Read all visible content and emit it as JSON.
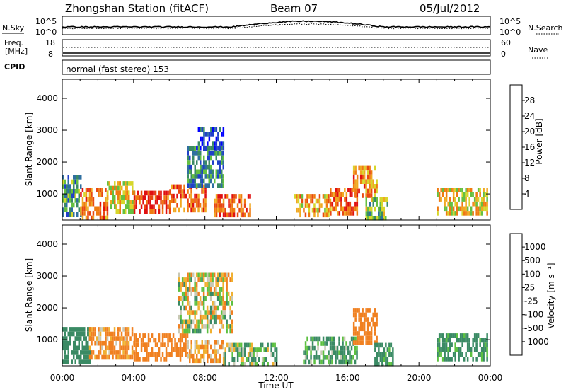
{
  "header": {
    "station": "Zhongshan Station (fitACF)",
    "beam": "Beam 07",
    "date": "05/Jul/2012"
  },
  "strip_panels": {
    "nsky_label": "N.Sky",
    "nsky_ticks": [
      "10^5",
      "10^0"
    ],
    "nsearch_label": "N.Search",
    "freq_label_line1": "Freq.",
    "freq_label_line2": "[MHz]",
    "freq_ticks": [
      "18",
      "8"
    ],
    "nave_ticks": [
      "60",
      "0"
    ],
    "nave_label": "Nave",
    "cpid_label": "CPID",
    "cpid_text": "normal (fast stereo) 153"
  },
  "axes": {
    "x_ticks": [
      "00:00",
      "04:00",
      "08:00",
      "12:00",
      "16:00",
      "20:00",
      "00:00"
    ],
    "x_label": "Time UT",
    "y_label": "Slant Range [km]",
    "y_ticks": [
      "1000",
      "2000",
      "3000",
      "4000"
    ]
  },
  "colorbars": {
    "power": {
      "label": "Power [dB]",
      "ticks": [
        "4",
        "8",
        "12",
        "16",
        "20",
        "24",
        "28"
      ],
      "colors": [
        "#0000ff",
        "#2040c8",
        "#2f6fa0",
        "#3a8a64",
        "#65c040",
        "#d6d62a",
        "#f0a820",
        "#ef7a10",
        "#e84810",
        "#e01010"
      ]
    },
    "velocity": {
      "label": "Velocity [m s⁻¹]",
      "ticks": [
        "1000",
        "500",
        "100",
        "25",
        "-25",
        "-100",
        "-500",
        "-1000"
      ],
      "colors": [
        "#1e3cc8",
        "#2f6fa0",
        "#3a8a64",
        "#5cc040",
        "#c8c8b4",
        "#f0b030",
        "#f08020",
        "#e84810",
        "#e01010"
      ]
    }
  },
  "chart_data": [
    {
      "type": "heatmap",
      "name": "Power",
      "title": "",
      "xlabel": "Time UT",
      "ylabel": "Slant Range [km]",
      "xlim": [
        0,
        24
      ],
      "ylim": [
        180,
        4600
      ],
      "colorbar_label": "Power [dB]",
      "colorbar_range": [
        0,
        30
      ],
      "regions": [
        {
          "t": [
            0.0,
            1.0
          ],
          "r": [
            300,
            1600
          ],
          "level": 10
        },
        {
          "t": [
            1.0,
            2.5
          ],
          "r": [
            300,
            1200
          ],
          "level": 22
        },
        {
          "t": [
            2.5,
            4.0
          ],
          "r": [
            400,
            1400
          ],
          "level": 18
        },
        {
          "t": [
            4.0,
            6.0
          ],
          "r": [
            400,
            1100
          ],
          "level": 26
        },
        {
          "t": [
            6.0,
            8.0
          ],
          "r": [
            500,
            1300
          ],
          "level": 24
        },
        {
          "t": [
            7.0,
            9.0
          ],
          "r": [
            1300,
            2500
          ],
          "level": 9
        },
        {
          "t": [
            7.5,
            9.0
          ],
          "r": [
            2500,
            3100
          ],
          "level": 6
        },
        {
          "t": [
            8.5,
            10.5
          ],
          "r": [
            300,
            1000
          ],
          "level": 24
        },
        {
          "t": [
            13.0,
            15.0
          ],
          "r": [
            400,
            1000
          ],
          "level": 20
        },
        {
          "t": [
            15.0,
            16.5
          ],
          "r": [
            400,
            1200
          ],
          "level": 24
        },
        {
          "t": [
            16.3,
            17.6
          ],
          "r": [
            1000,
            1900
          ],
          "level": 22
        },
        {
          "t": [
            17.0,
            18.2
          ],
          "r": [
            300,
            900
          ],
          "level": 14
        },
        {
          "t": [
            21.0,
            23.8
          ],
          "r": [
            400,
            1200
          ],
          "level": 18
        }
      ]
    },
    {
      "type": "heatmap",
      "name": "Velocity",
      "title": "",
      "xlabel": "Time UT",
      "ylabel": "Slant Range [km]",
      "xlim": [
        0,
        24
      ],
      "ylim": [
        180,
        4600
      ],
      "colorbar_label": "Velocity [m s⁻¹]",
      "colorbar_range": [
        -1000,
        1000
      ],
      "regions": [
        {
          "t": [
            0.0,
            1.5
          ],
          "r": [
            300,
            1400
          ],
          "level": 300
        },
        {
          "t": [
            1.5,
            4.0
          ],
          "r": [
            400,
            1400
          ],
          "level": -150
        },
        {
          "t": [
            4.0,
            7.0
          ],
          "r": [
            400,
            1200
          ],
          "level": -250
        },
        {
          "t": [
            6.5,
            9.5
          ],
          "r": [
            1200,
            3100
          ],
          "level": 0
        },
        {
          "t": [
            7.0,
            9.0
          ],
          "r": [
            300,
            1000
          ],
          "level": -120
        },
        {
          "t": [
            9.0,
            12.0
          ],
          "r": [
            300,
            900
          ],
          "level": 80
        },
        {
          "t": [
            13.5,
            16.5
          ],
          "r": [
            300,
            1100
          ],
          "level": 150
        },
        {
          "t": [
            16.3,
            17.6
          ],
          "r": [
            900,
            2000
          ],
          "level": -300
        },
        {
          "t": [
            17.5,
            18.5
          ],
          "r": [
            300,
            900
          ],
          "level": 200
        },
        {
          "t": [
            21.0,
            23.8
          ],
          "r": [
            400,
            1200
          ],
          "level": 200
        }
      ]
    }
  ]
}
